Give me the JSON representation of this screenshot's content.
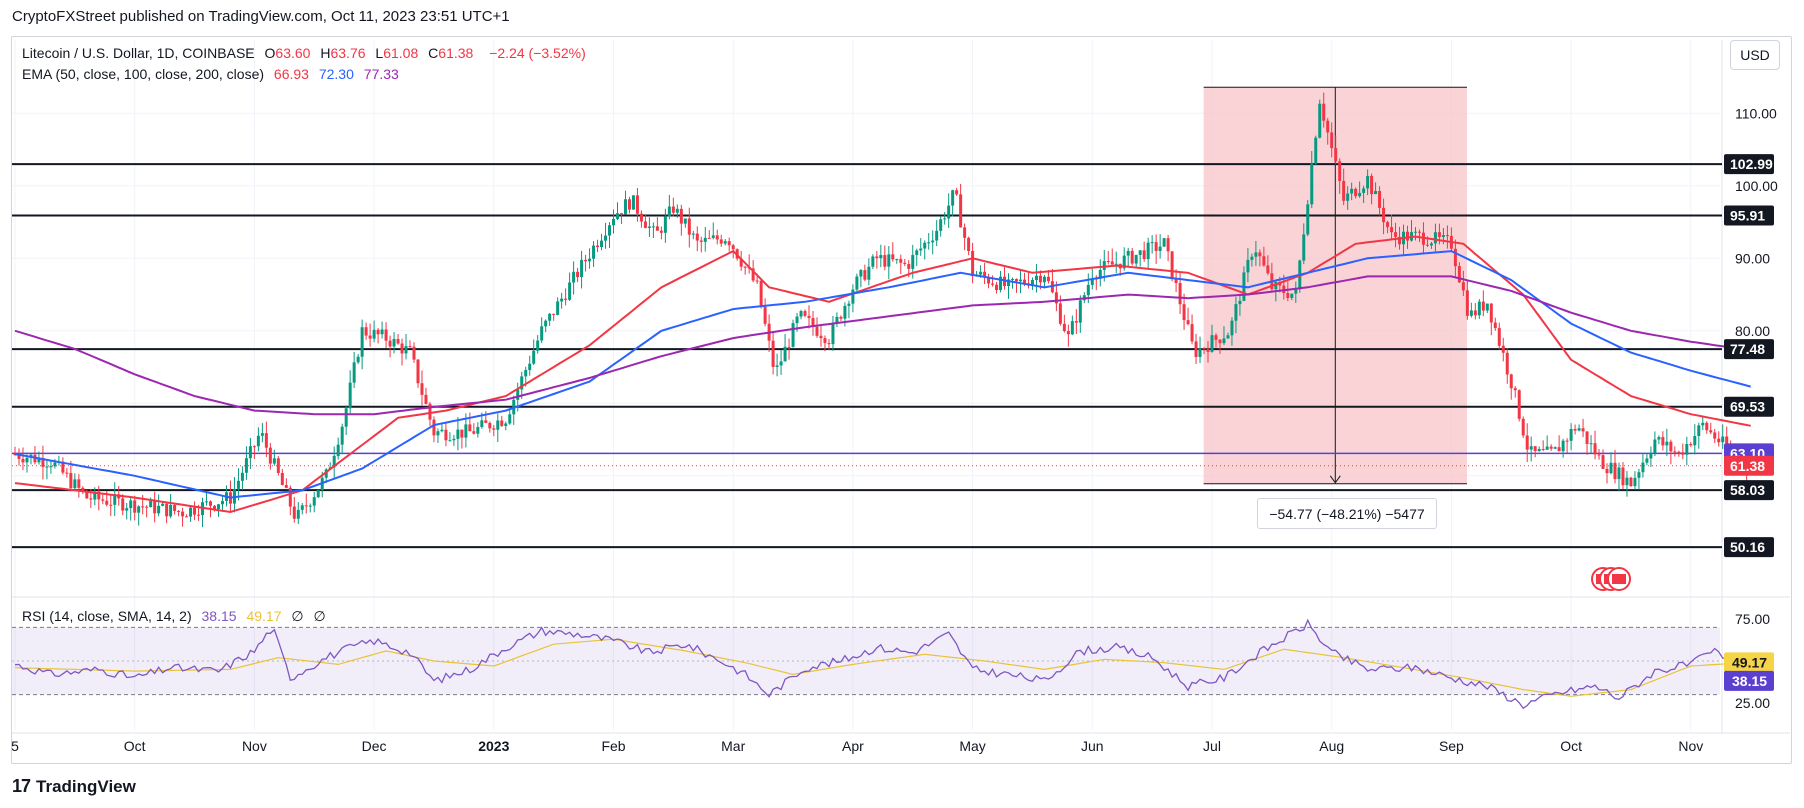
{
  "header": {
    "caption": "CryptoFXStreet published on TradingView.com, Oct 11, 2023 23:51 UTC+1"
  },
  "legend": {
    "symbol": "Litecoin / U.S. Dollar, 1D, COINBASE",
    "open_label": "O",
    "open": "63.60",
    "high_label": "H",
    "high": "63.76",
    "low_label": "L",
    "low": "61.08",
    "close_label": "C",
    "close": "61.38",
    "change": "−2.24 (−3.52%)",
    "ema_label": "EMA (50, close, 100, close, 200, close)",
    "ema50": "66.93",
    "ema100": "72.30",
    "ema200": "77.33"
  },
  "rsi_legend": {
    "label": "RSI (14, close, SMA, 14, 2)",
    "rsi": "38.15",
    "sma": "49.17",
    "extra1": "∅",
    "extra2": "∅"
  },
  "toolbar": {
    "currency": "USD"
  },
  "measure": {
    "text": "−54.77 (−48.21%) −5477"
  },
  "footer": {
    "brand": "TradingView",
    "logo": "17"
  },
  "colors": {
    "up": "#089981",
    "down": "#f23645",
    "ema50": "#f23645",
    "ema100": "#2962ff",
    "ema200": "#9c27b0",
    "rsi": "#7e57c2",
    "rsi_sma": "#e8c33a",
    "range_fill": "#f7c4c8"
  },
  "chart_data": {
    "type": "candlestick",
    "title": "Litecoin / U.S. Dollar, 1D, COINBASE",
    "x_labels": [
      "5",
      "Oct",
      "Nov",
      "Dec",
      "2023",
      "Feb",
      "Mar",
      "Apr",
      "May",
      "Jun",
      "Jul",
      "Aug",
      "Sep",
      "Oct",
      "Nov"
    ],
    "y_ticks": [
      "110.00",
      "100.00",
      "90.00",
      "80.00"
    ],
    "ylim": [
      46,
      118
    ],
    "horizontal_levels": [
      102.99,
      95.91,
      77.48,
      69.53,
      58.03,
      50.16
    ],
    "support_line": 63.1,
    "last_price": 61.38,
    "price_badges": [
      {
        "label": "102.99",
        "value": 102.99,
        "style": "dark"
      },
      {
        "label": "95.91",
        "value": 95.91,
        "style": "dark"
      },
      {
        "label": "77.48",
        "value": 77.48,
        "style": "dark"
      },
      {
        "label": "69.53",
        "value": 69.53,
        "style": "dark"
      },
      {
        "label": "63.10",
        "value": 63.1,
        "style": "purple"
      },
      {
        "label": "61.38",
        "value": 61.38,
        "style": "red"
      },
      {
        "label": "58.03",
        "value": 58.03,
        "style": "dark"
      },
      {
        "label": "50.16",
        "value": 50.16,
        "style": "dark"
      }
    ],
    "price_range": {
      "from_month": 9.93,
      "to_month": 12.13,
      "high": 113.6,
      "low": 58.9
    },
    "price_knots": [
      [
        0,
        63
      ],
      [
        0.3,
        62
      ],
      [
        0.6,
        57
      ],
      [
        1.0,
        56
      ],
      [
        1.4,
        55
      ],
      [
        1.8,
        57
      ],
      [
        2.05,
        66
      ],
      [
        2.2,
        60
      ],
      [
        2.35,
        54
      ],
      [
        2.6,
        60
      ],
      [
        2.75,
        68
      ],
      [
        2.9,
        80
      ],
      [
        3.1,
        79
      ],
      [
        3.3,
        77
      ],
      [
        3.5,
        66
      ],
      [
        3.8,
        66
      ],
      [
        4.1,
        68
      ],
      [
        4.4,
        80
      ],
      [
        4.7,
        88
      ],
      [
        5.0,
        96
      ],
      [
        5.15,
        98
      ],
      [
        5.35,
        93
      ],
      [
        5.5,
        97
      ],
      [
        5.7,
        92
      ],
      [
        5.95,
        93
      ],
      [
        6.2,
        86
      ],
      [
        6.35,
        74
      ],
      [
        6.55,
        82
      ],
      [
        6.8,
        79
      ],
      [
        7.0,
        86
      ],
      [
        7.2,
        90
      ],
      [
        7.45,
        89
      ],
      [
        7.7,
        94
      ],
      [
        7.85,
        99
      ],
      [
        8.0,
        88
      ],
      [
        8.3,
        86
      ],
      [
        8.6,
        88
      ],
      [
        8.8,
        79
      ],
      [
        9.0,
        88
      ],
      [
        9.3,
        90
      ],
      [
        9.6,
        92
      ],
      [
        9.85,
        77
      ],
      [
        10.15,
        80
      ],
      [
        10.35,
        92
      ],
      [
        10.5,
        86
      ],
      [
        10.7,
        85
      ],
      [
        10.9,
        112
      ],
      [
        11.1,
        98
      ],
      [
        11.3,
        101
      ],
      [
        11.5,
        93
      ],
      [
        11.75,
        93
      ],
      [
        12.0,
        92
      ],
      [
        12.15,
        82
      ],
      [
        12.3,
        84
      ],
      [
        12.5,
        73
      ],
      [
        12.65,
        63
      ],
      [
        12.85,
        63
      ],
      [
        13.05,
        67
      ],
      [
        13.25,
        62
      ],
      [
        13.5,
        59
      ],
      [
        13.7,
        65
      ],
      [
        13.9,
        63
      ],
      [
        14.1,
        67
      ],
      [
        14.35,
        63
      ],
      [
        14.5,
        61.4
      ]
    ],
    "series": [
      {
        "name": "EMA 50",
        "color": "#f23645",
        "knots": [
          [
            0,
            59
          ],
          [
            1.0,
            57
          ],
          [
            1.8,
            55
          ],
          [
            2.4,
            58
          ],
          [
            2.8,
            63
          ],
          [
            3.2,
            68
          ],
          [
            3.6,
            69
          ],
          [
            4.1,
            71
          ],
          [
            4.8,
            78
          ],
          [
            5.4,
            86
          ],
          [
            6.0,
            91
          ],
          [
            6.3,
            86
          ],
          [
            6.8,
            84
          ],
          [
            7.5,
            88
          ],
          [
            8.0,
            90
          ],
          [
            8.5,
            88
          ],
          [
            9.2,
            89
          ],
          [
            9.8,
            88
          ],
          [
            10.3,
            85
          ],
          [
            10.8,
            88
          ],
          [
            11.2,
            92
          ],
          [
            11.7,
            93
          ],
          [
            12.1,
            92
          ],
          [
            12.6,
            85
          ],
          [
            13.0,
            76
          ],
          [
            13.5,
            71
          ],
          [
            14.0,
            68.5
          ],
          [
            14.5,
            66.9
          ]
        ]
      },
      {
        "name": "EMA 100",
        "color": "#2962ff",
        "knots": [
          [
            0,
            63
          ],
          [
            1.0,
            60
          ],
          [
            1.8,
            57
          ],
          [
            2.4,
            58
          ],
          [
            2.9,
            61
          ],
          [
            3.5,
            67
          ],
          [
            4.1,
            69
          ],
          [
            4.8,
            73
          ],
          [
            5.4,
            80
          ],
          [
            6.0,
            83
          ],
          [
            6.6,
            84
          ],
          [
            7.3,
            86
          ],
          [
            7.9,
            88
          ],
          [
            8.6,
            86
          ],
          [
            9.3,
            88
          ],
          [
            9.8,
            87
          ],
          [
            10.3,
            86
          ],
          [
            10.8,
            88
          ],
          [
            11.3,
            90
          ],
          [
            12.0,
            91
          ],
          [
            12.5,
            87
          ],
          [
            13.0,
            81
          ],
          [
            13.5,
            77
          ],
          [
            14.0,
            74.5
          ],
          [
            14.5,
            72.3
          ]
        ]
      },
      {
        "name": "EMA 200",
        "color": "#9c27b0",
        "knots": [
          [
            0,
            80
          ],
          [
            0.5,
            77.5
          ],
          [
            1.0,
            74
          ],
          [
            1.5,
            71
          ],
          [
            2.0,
            69
          ],
          [
            2.5,
            68.5
          ],
          [
            3.0,
            68.5
          ],
          [
            3.5,
            69.5
          ],
          [
            4.1,
            70.5
          ],
          [
            4.8,
            73.5
          ],
          [
            5.4,
            76.5
          ],
          [
            6.0,
            79
          ],
          [
            6.6,
            80.5
          ],
          [
            7.3,
            82
          ],
          [
            8.0,
            83.5
          ],
          [
            8.6,
            84
          ],
          [
            9.3,
            85
          ],
          [
            9.8,
            84.5
          ],
          [
            10.3,
            85
          ],
          [
            10.8,
            86
          ],
          [
            11.3,
            87.5
          ],
          [
            12.0,
            87.5
          ],
          [
            12.5,
            85.5
          ],
          [
            13.0,
            82.5
          ],
          [
            13.5,
            80
          ],
          [
            14.0,
            78.5
          ],
          [
            14.5,
            77.3
          ]
        ]
      }
    ],
    "rsi": {
      "name": "RSI",
      "y_ticks": [
        "75.00",
        "25.00"
      ],
      "ylim": [
        20,
        80
      ],
      "upper": 70,
      "lower": 30,
      "middle": 50,
      "badges": [
        {
          "label": "49.17",
          "value": 49.17,
          "style": "yellow"
        },
        {
          "label": "38.15",
          "value": 38.15,
          "style": "purple"
        }
      ],
      "knots": [
        [
          0,
          48
        ],
        [
          0.3,
          42
        ],
        [
          0.7,
          45
        ],
        [
          1.0,
          40
        ],
        [
          1.3,
          46
        ],
        [
          1.7,
          44
        ],
        [
          2.0,
          56
        ],
        [
          2.15,
          70
        ],
        [
          2.3,
          40
        ],
        [
          2.6,
          52
        ],
        [
          2.8,
          58
        ],
        [
          3.0,
          62
        ],
        [
          3.3,
          55
        ],
        [
          3.5,
          38
        ],
        [
          3.8,
          45
        ],
        [
          4.1,
          58
        ],
        [
          4.4,
          68
        ],
        [
          4.7,
          66
        ],
        [
          5.0,
          62
        ],
        [
          5.3,
          55
        ],
        [
          5.6,
          60
        ],
        [
          5.9,
          50
        ],
        [
          6.1,
          42
        ],
        [
          6.3,
          30
        ],
        [
          6.6,
          46
        ],
        [
          6.9,
          50
        ],
        [
          7.2,
          58
        ],
        [
          7.5,
          55
        ],
        [
          7.8,
          66
        ],
        [
          8.0,
          45
        ],
        [
          8.3,
          42
        ],
        [
          8.6,
          38
        ],
        [
          8.9,
          56
        ],
        [
          9.2,
          58
        ],
        [
          9.5,
          52
        ],
        [
          9.8,
          35
        ],
        [
          10.1,
          40
        ],
        [
          10.4,
          55
        ],
        [
          10.8,
          72
        ],
        [
          11.0,
          55
        ],
        [
          11.3,
          45
        ],
        [
          11.7,
          46
        ],
        [
          12.0,
          40
        ],
        [
          12.3,
          35
        ],
        [
          12.6,
          24
        ],
        [
          12.9,
          31
        ],
        [
          13.2,
          35
        ],
        [
          13.4,
          28
        ],
        [
          13.7,
          44
        ],
        [
          14.0,
          48
        ],
        [
          14.2,
          56
        ],
        [
          14.5,
          38
        ]
      ],
      "sma_knots": [
        [
          0,
          46
        ],
        [
          1.0,
          44
        ],
        [
          1.8,
          45
        ],
        [
          2.2,
          52
        ],
        [
          2.7,
          48
        ],
        [
          3.1,
          56
        ],
        [
          3.5,
          50
        ],
        [
          4.0,
          47
        ],
        [
          4.5,
          60
        ],
        [
          5.0,
          63
        ],
        [
          5.6,
          56
        ],
        [
          6.1,
          49
        ],
        [
          6.5,
          42
        ],
        [
          7.0,
          48
        ],
        [
          7.6,
          54
        ],
        [
          8.1,
          50
        ],
        [
          8.6,
          45
        ],
        [
          9.1,
          51
        ],
        [
          9.6,
          49
        ],
        [
          10.1,
          45
        ],
        [
          10.6,
          57
        ],
        [
          11.1,
          52
        ],
        [
          11.6,
          46
        ],
        [
          12.1,
          40
        ],
        [
          12.6,
          33
        ],
        [
          13.0,
          29
        ],
        [
          13.5,
          33
        ],
        [
          14.0,
          47
        ],
        [
          14.5,
          49.2
        ]
      ]
    }
  }
}
